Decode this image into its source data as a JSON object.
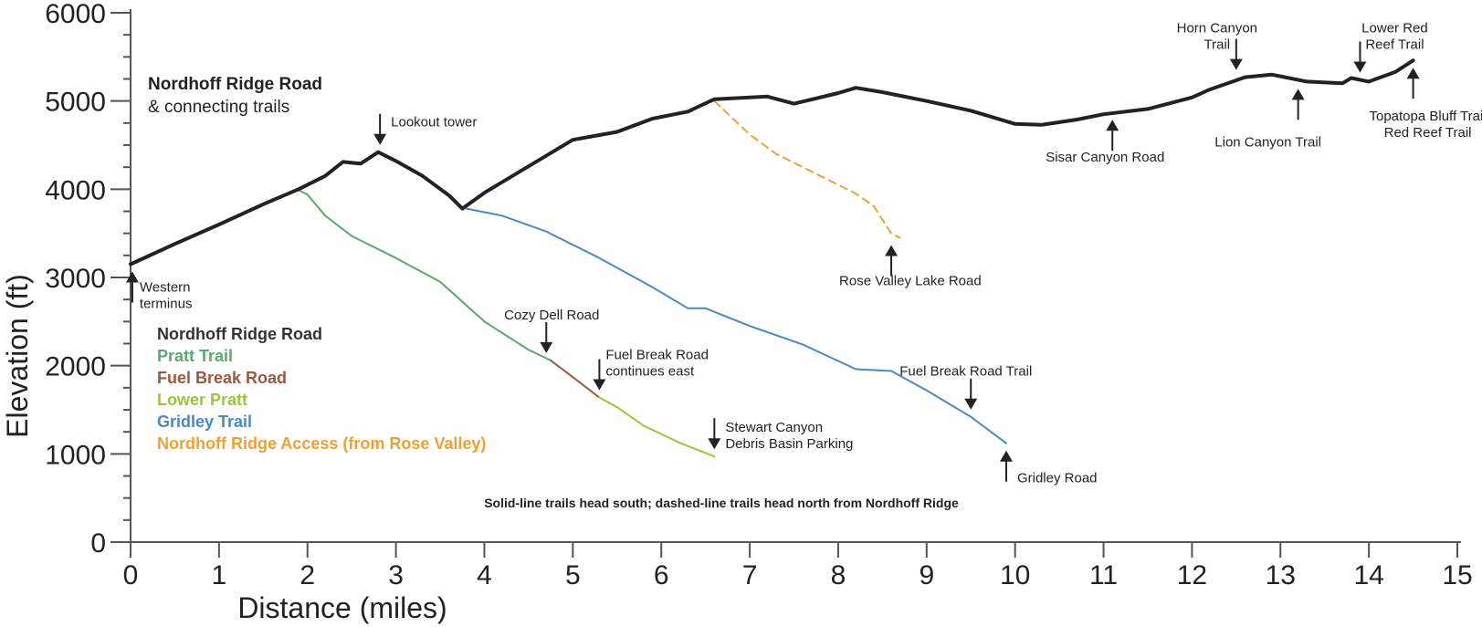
{
  "chart_data": {
    "type": "line",
    "title": "Nordhoff Ridge Road",
    "subtitle": "& connecting trails",
    "xlabel": "Distance (miles)",
    "ylabel": "Elevation (ft)",
    "xlim": [
      0,
      15
    ],
    "ylim": [
      0,
      6000
    ],
    "x_ticks": [
      0,
      1,
      2,
      3,
      4,
      5,
      6,
      7,
      8,
      9,
      10,
      11,
      12,
      13,
      14,
      15
    ],
    "y_ticks": [
      0,
      1000,
      2000,
      3000,
      4000,
      5000,
      6000
    ],
    "grid": false,
    "legend_position": "left",
    "note": "Solid-line trails head south; dashed-line trails head north from Nordhoff Ridge",
    "series": [
      {
        "name": "Nordhoff Ridge Road",
        "color": "#222222",
        "style": "solid",
        "width": 4,
        "points": [
          [
            0,
            3150
          ],
          [
            0.5,
            3380
          ],
          [
            1,
            3600
          ],
          [
            1.5,
            3830
          ],
          [
            1.9,
            4000
          ],
          [
            2.2,
            4150
          ],
          [
            2.4,
            4310
          ],
          [
            2.6,
            4290
          ],
          [
            2.8,
            4420
          ],
          [
            3.0,
            4320
          ],
          [
            3.3,
            4150
          ],
          [
            3.6,
            3930
          ],
          [
            3.75,
            3780
          ],
          [
            4.0,
            3960
          ],
          [
            4.5,
            4260
          ],
          [
            5.0,
            4560
          ],
          [
            5.5,
            4650
          ],
          [
            5.9,
            4800
          ],
          [
            6.3,
            4880
          ],
          [
            6.6,
            5020
          ],
          [
            7.0,
            5040
          ],
          [
            7.2,
            5050
          ],
          [
            7.5,
            4970
          ],
          [
            8.0,
            5090
          ],
          [
            8.2,
            5150
          ],
          [
            8.5,
            5100
          ],
          [
            9.0,
            5000
          ],
          [
            9.5,
            4890
          ],
          [
            10.0,
            4740
          ],
          [
            10.3,
            4730
          ],
          [
            10.7,
            4790
          ],
          [
            11.0,
            4850
          ],
          [
            11.5,
            4910
          ],
          [
            12.0,
            5040
          ],
          [
            12.2,
            5130
          ],
          [
            12.6,
            5270
          ],
          [
            12.9,
            5300
          ],
          [
            13.3,
            5220
          ],
          [
            13.7,
            5200
          ],
          [
            13.8,
            5260
          ],
          [
            14.0,
            5220
          ],
          [
            14.3,
            5330
          ],
          [
            14.5,
            5460
          ]
        ]
      },
      {
        "name": "Pratt Trail",
        "color": "#5aa870",
        "style": "solid",
        "width": 2,
        "points": [
          [
            1.9,
            3990
          ],
          [
            2.0,
            3940
          ],
          [
            2.2,
            3700
          ],
          [
            2.5,
            3470
          ],
          [
            3.0,
            3220
          ],
          [
            3.5,
            2950
          ],
          [
            4.0,
            2500
          ],
          [
            4.5,
            2180
          ],
          [
            4.75,
            2060
          ]
        ]
      },
      {
        "name": "Fuel Break Road",
        "color": "#9d5742",
        "style": "solid",
        "width": 2,
        "points": [
          [
            4.75,
            2060
          ],
          [
            5.0,
            1870
          ],
          [
            5.3,
            1640
          ]
        ]
      },
      {
        "name": "Lower Pratt",
        "color": "#9cc53c",
        "style": "solid",
        "width": 2,
        "points": [
          [
            5.3,
            1640
          ],
          [
            5.5,
            1530
          ],
          [
            5.8,
            1320
          ],
          [
            6.2,
            1130
          ],
          [
            6.6,
            970
          ]
        ]
      },
      {
        "name": "Gridley Trail",
        "color": "#4a89c8",
        "style": "solid",
        "width": 2,
        "points": [
          [
            3.8,
            3780
          ],
          [
            4.2,
            3700
          ],
          [
            4.7,
            3520
          ],
          [
            5.3,
            3220
          ],
          [
            5.9,
            2890
          ],
          [
            6.3,
            2650
          ],
          [
            6.5,
            2650
          ],
          [
            7.0,
            2450
          ],
          [
            7.6,
            2240
          ],
          [
            8.2,
            1960
          ],
          [
            8.6,
            1940
          ],
          [
            9.0,
            1720
          ],
          [
            9.5,
            1420
          ],
          [
            9.9,
            1120
          ]
        ]
      },
      {
        "name": "Nordhoff Ridge Access (from Rose Valley)",
        "color": "#f0a030",
        "style": "dashed",
        "width": 2,
        "points": [
          [
            6.6,
            5000
          ],
          [
            7.0,
            4620
          ],
          [
            7.3,
            4400
          ],
          [
            7.7,
            4200
          ],
          [
            8.2,
            3950
          ],
          [
            8.4,
            3810
          ],
          [
            8.6,
            3500
          ],
          [
            8.7,
            3450
          ]
        ]
      }
    ],
    "annotations": [
      {
        "label": "Western\nterminus",
        "x": 0.02,
        "y": 3150,
        "arrow": "up"
      },
      {
        "label": "Lookout tower",
        "x": 2.82,
        "y": 4420,
        "arrow": "down"
      },
      {
        "label": "Cozy Dell Road",
        "x": 4.7,
        "y": 2060,
        "arrow": "down"
      },
      {
        "label": "Fuel Break Road\ncontinues east",
        "x": 5.3,
        "y": 1640,
        "arrow": "down"
      },
      {
        "label": "Stewart Canyon\nDebris Basin Parking",
        "x": 6.6,
        "y": 970,
        "arrow": "down"
      },
      {
        "label": "Rose Valley Lake Road",
        "x": 8.6,
        "y": 3450,
        "arrow": "up"
      },
      {
        "label": "Fuel Break Road Trail",
        "x": 9.5,
        "y": 1420,
        "arrow": "down"
      },
      {
        "label": "Gridley Road",
        "x": 9.9,
        "y": 1120,
        "arrow": "up"
      },
      {
        "label": "Sisar Canyon Road",
        "x": 11.1,
        "y": 4870,
        "arrow": "up"
      },
      {
        "label": "Horn Canyon\nTrail",
        "x": 12.5,
        "y": 5270,
        "arrow": "down"
      },
      {
        "label": "Lion Canyon Trail",
        "x": 13.2,
        "y": 5220,
        "arrow": "up"
      },
      {
        "label": "Lower Red\nReef Trail",
        "x": 13.9,
        "y": 5240,
        "arrow": "down"
      },
      {
        "label": "Topatopa Bluff Trail\nRed Reef Trail",
        "x": 14.5,
        "y": 5460,
        "arrow": "up"
      }
    ]
  }
}
